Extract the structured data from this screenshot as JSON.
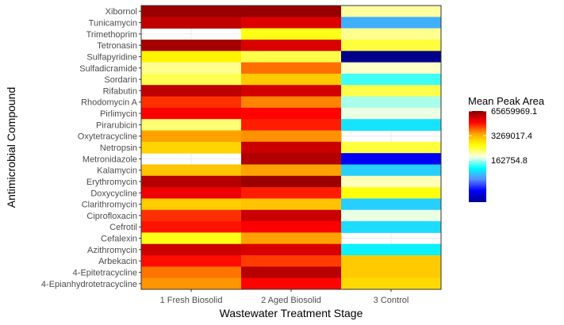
{
  "chart_data": {
    "type": "heatmap",
    "xlabel": "Wastewater Treatment Stage",
    "ylabel": "Antimicrobial Compound",
    "x_categories": [
      "1 Fresh Biosolid",
      "2 Aged Biosolid",
      "3 Control"
    ],
    "y_categories": [
      "Xibornol",
      "Tunicamycin",
      "Trimethoprim",
      "Tetronasin",
      "Sulfapyridine",
      "Sulfadicramide",
      "Sordarin",
      "Rifabutin",
      "Rhodomycin A",
      "Pirlimycin",
      "Pirarubicin",
      "Oxytetracycline",
      "Netropsin",
      "Metronidazole",
      "Kalamycin",
      "Erythromycin",
      "Doxycycline",
      "Clarithromycin",
      "Ciprofloxacin",
      "Cefrotil",
      "Cefalexin",
      "Azithromycin",
      "Arbekacin",
      "4-Epitetracycline",
      "4-Epianhydrotetracycline"
    ],
    "values": [
      [
        54000000,
        56000000,
        380000
      ],
      [
        35000000,
        25000000,
        24000
      ],
      [
        null,
        900000,
        420000
      ],
      [
        48000000,
        26000000,
        700000
      ],
      [
        1200000,
        650000,
        1000
      ],
      [
        420000,
        6500000,
        300000
      ],
      [
        620000,
        2300000,
        90000
      ],
      [
        36000000,
        28000000,
        650000
      ],
      [
        11000000,
        5500000,
        160000
      ],
      [
        17000000,
        16000000,
        230000
      ],
      [
        500000,
        13000000,
        46000
      ],
      [
        4200000,
        4800000,
        null
      ],
      [
        2000000,
        31000000,
        700000
      ],
      [
        null,
        42000000,
        3500
      ],
      [
        2600000,
        4200000,
        36000
      ],
      [
        40000000,
        55000000,
        320000
      ],
      [
        20000000,
        13000000,
        950000
      ],
      [
        2200000,
        2600000,
        36000
      ],
      [
        11000000,
        31000000,
        230000
      ],
      [
        14000000,
        17000000,
        42000
      ],
      [
        900000,
        4200000,
        null
      ],
      [
        30000000,
        26000000,
        55000
      ],
      [
        15000000,
        10000000,
        2300000
      ],
      [
        6200000,
        38000000,
        2300000
      ],
      [
        4700000,
        16000000,
        1800000
      ]
    ],
    "legend": {
      "title": "Mean Peak Area",
      "breaks": [
        "65659969.1",
        "3269017.4",
        "162754.8"
      ],
      "break_values": [
        65659969.1,
        3269017.4,
        162754.8
      ],
      "min": 1000,
      "max": 65659969.1,
      "scale": "log",
      "placement": "right"
    },
    "grid": true,
    "colors": {
      "na_fill": "#ffffff",
      "gradient": [
        "#00008b",
        "#0000ff",
        "#5b8cff",
        "#00ffff",
        "#ffffe0",
        "#ffff00",
        "#ffa500",
        "#ff0000",
        "#8b0000"
      ],
      "grid_line": "#ebebeb",
      "panel_border": "#333333",
      "tick_text": "#4d4d4d"
    }
  }
}
